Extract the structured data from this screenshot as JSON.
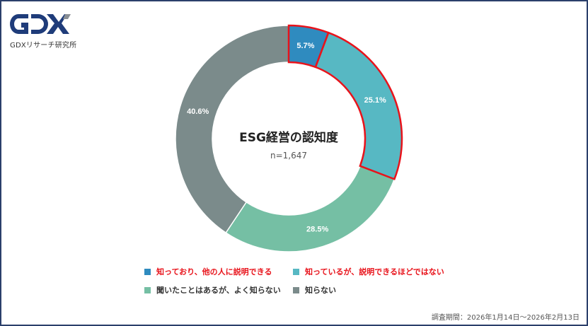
{
  "logo": {
    "text": "GDX",
    "subtitle": "GDXリサーチ研究所"
  },
  "chart_data": {
    "type": "pie",
    "variant": "donut",
    "title": "ESG経営の認知度",
    "subtitle": "n=1,647",
    "categories": [
      "知っており、他の人に説明できる",
      "知っているが、説明できるほどではない",
      "聞いたことはあるが、よく知らない",
      "知らない"
    ],
    "values": [
      5.7,
      25.1,
      28.5,
      40.6
    ],
    "labels": [
      "5.7%",
      "25.1%",
      "28.5%",
      "40.6%"
    ],
    "colors": [
      "#2f8bbf",
      "#57b8c3",
      "#75bfa4",
      "#7b8b8b"
    ],
    "highlighted": [
      true,
      true,
      false,
      false
    ],
    "highlight_color": "#e8131b",
    "legend_placement": "bottom"
  },
  "footer": {
    "survey_period": "調査期間：2026年1月14日～2026年2月13日"
  }
}
